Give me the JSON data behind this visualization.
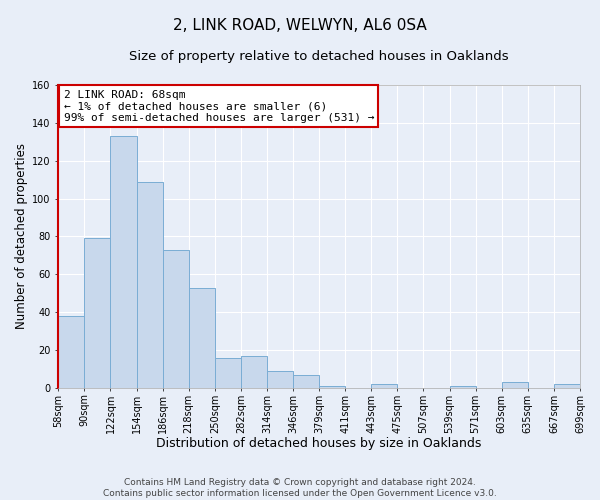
{
  "title": "2, LINK ROAD, WELWYN, AL6 0SA",
  "subtitle": "Size of property relative to detached houses in Oaklands",
  "xlabel": "Distribution of detached houses by size in Oaklands",
  "ylabel": "Number of detached properties",
  "bar_values": [
    38,
    79,
    133,
    109,
    73,
    53,
    16,
    17,
    9,
    7,
    1,
    0,
    2,
    0,
    0,
    1,
    0,
    3,
    0,
    2
  ],
  "bin_labels": [
    "58sqm",
    "90sqm",
    "122sqm",
    "154sqm",
    "186sqm",
    "218sqm",
    "250sqm",
    "282sqm",
    "314sqm",
    "346sqm",
    "379sqm",
    "411sqm",
    "443sqm",
    "475sqm",
    "507sqm",
    "539sqm",
    "571sqm",
    "603sqm",
    "635sqm",
    "667sqm",
    "699sqm"
  ],
  "bar_color": "#c8d8ec",
  "bar_edge_color": "#7aadd4",
  "annotation_line1": "2 LINK ROAD: 68sqm",
  "annotation_line2": "← 1% of detached houses are smaller (6)",
  "annotation_line3": "99% of semi-detached houses are larger (531) →",
  "ylim": [
    0,
    160
  ],
  "yticks": [
    0,
    20,
    40,
    60,
    80,
    100,
    120,
    140,
    160
  ],
  "footer_text": "Contains HM Land Registry data © Crown copyright and database right 2024.\nContains public sector information licensed under the Open Government Licence v3.0.",
  "background_color": "#e8eef8",
  "plot_bg_color": "#e8eef8",
  "grid_color": "#ffffff",
  "red_color": "#cc0000",
  "title_fontsize": 11,
  "subtitle_fontsize": 9.5,
  "xlabel_fontsize": 9,
  "ylabel_fontsize": 8.5,
  "tick_fontsize": 7,
  "annotation_fontsize": 8,
  "footer_fontsize": 6.5
}
